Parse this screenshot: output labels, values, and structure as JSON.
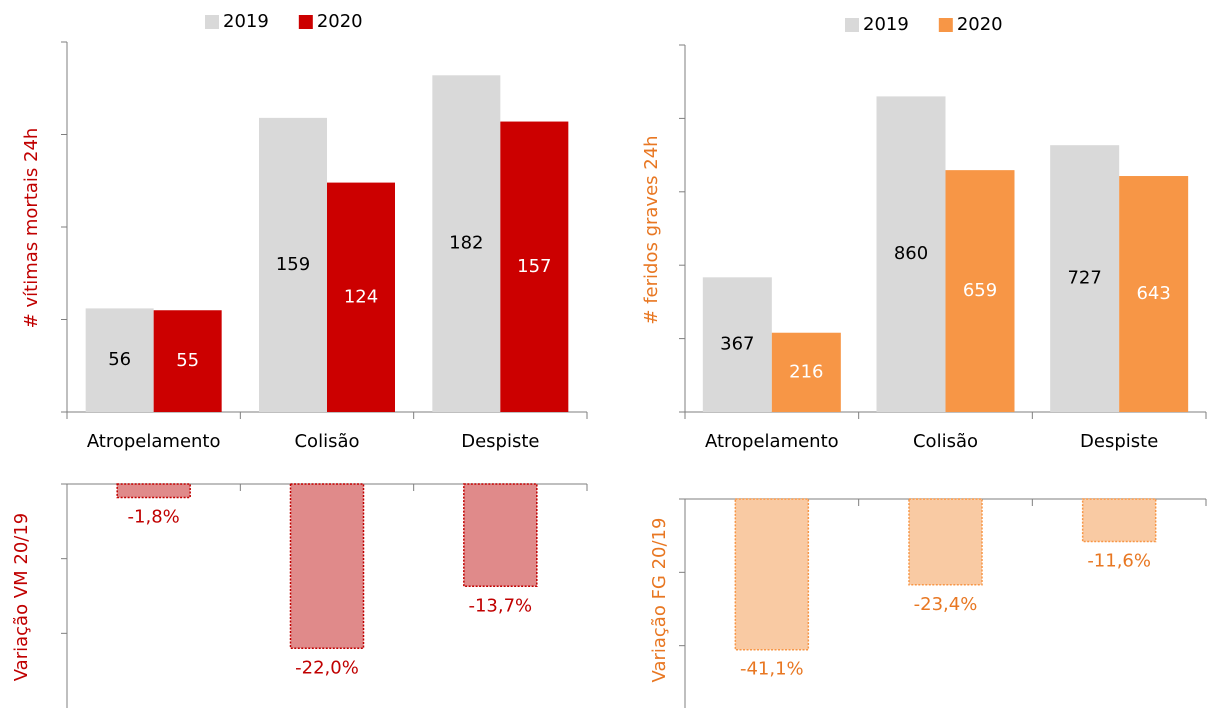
{
  "chart_data": [
    {
      "type": "bar",
      "y_label": "# vítimas mortais 24h",
      "y_label_color": "#c00000",
      "categories": [
        "Atropelamento",
        "Colisão",
        "Despiste"
      ],
      "series": [
        {
          "name": "2019",
          "color": "#d9d9d9",
          "values": [
            56,
            159,
            182
          ]
        },
        {
          "name": "2020",
          "color": "#cc0000",
          "values": [
            55,
            124,
            157
          ]
        }
      ],
      "ylim": [
        0,
        200
      ],
      "yticks": [
        0,
        50,
        100,
        150,
        200
      ]
    },
    {
      "type": "bar",
      "y_label": "# feridos graves 24h",
      "y_label_color": "#e87722",
      "categories": [
        "Atropelamento",
        "Colisão",
        "Despiste"
      ],
      "series": [
        {
          "name": "2019",
          "color": "#d9d9d9",
          "values": [
            367,
            860,
            727
          ]
        },
        {
          "name": "2020",
          "color": "#f79646",
          "values": [
            216,
            659,
            643
          ]
        }
      ],
      "ylim": [
        0,
        1000
      ],
      "yticks": [
        0,
        200,
        400,
        600,
        800,
        1000
      ]
    },
    {
      "type": "bar",
      "y_label": "Variação VM 20/19",
      "y_label_color": "#c00000",
      "values": [
        -1.8,
        -22.0,
        -13.7
      ],
      "value_labels": [
        "-1,8%",
        "-22,0%",
        "-13,7%"
      ],
      "color": "#e08a8a",
      "edge_color": "#c00000",
      "label_color": "#c00000",
      "ylim": [
        -30,
        0
      ],
      "yticks": [
        0,
        -10,
        -20
      ]
    },
    {
      "type": "bar",
      "y_label": "Variação FG 20/19",
      "y_label_color": "#e87722",
      "values": [
        -41.1,
        -23.4,
        -11.6
      ],
      "value_labels": [
        "-41,1%",
        "-23,4%",
        "-11,6%"
      ],
      "color": "#f9caa3",
      "edge_color": "#f79646",
      "label_color": "#e87722",
      "ylim": [
        -57,
        0
      ],
      "yticks": [
        0,
        -20,
        -40
      ]
    }
  ]
}
